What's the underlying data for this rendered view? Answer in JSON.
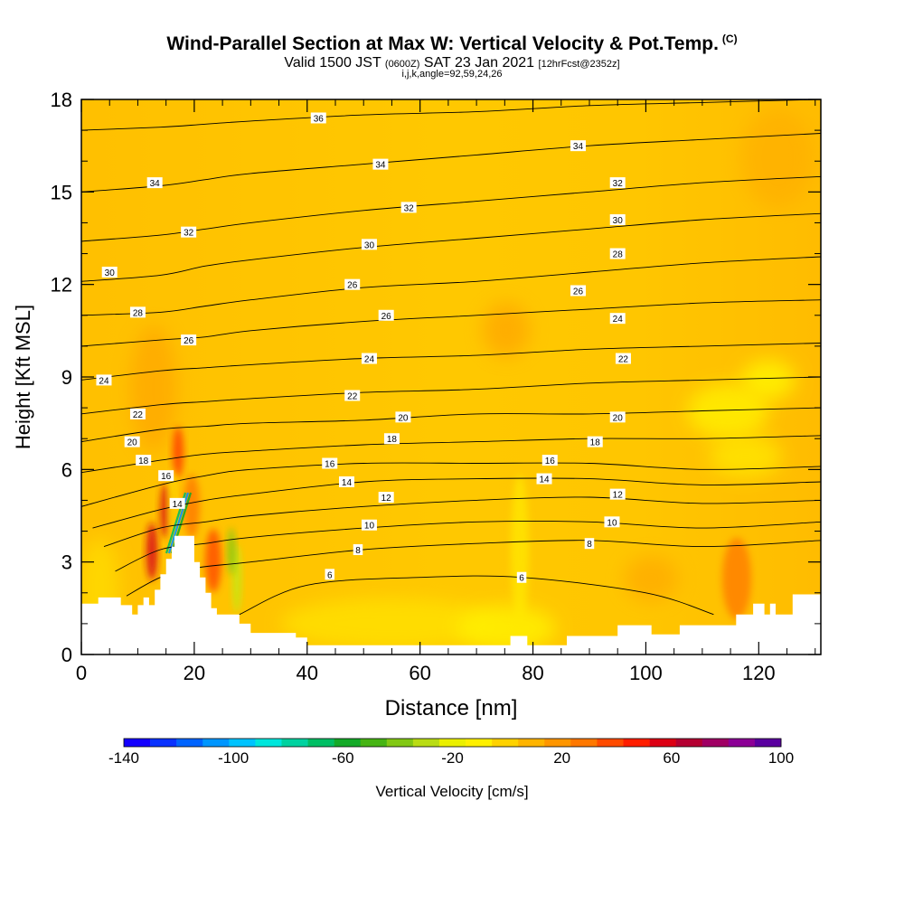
{
  "title": "Wind-Parallel Section at Max W: Vertical Velocity & Pot.Temp.",
  "title_tag": "(C)",
  "subtitle": {
    "valid": "Valid 1500 JST",
    "z_time": "(0600Z)",
    "date": "SAT 23 Jan 2021",
    "forecast": "[12hrFcst@2352z]"
  },
  "subtitle2": "i,j,k,angle=92,59,24,26",
  "chart_data": {
    "type": "heatmap",
    "xlabel": "Distance [nm]",
    "ylabel": "Height [Kft MSL]",
    "xlim": [
      0,
      131
    ],
    "ylim": [
      0,
      18
    ],
    "x_ticks": [
      0,
      20,
      40,
      60,
      80,
      100,
      120
    ],
    "y_ticks": [
      0,
      3,
      6,
      9,
      12,
      15,
      18
    ],
    "colorbar": {
      "label": "Vertical Velocity [cm/s]",
      "tick_labels": [
        -140,
        -100,
        -60,
        -20,
        20,
        60,
        100
      ],
      "levels": [
        -140,
        -130,
        -120,
        -110,
        -100,
        -90,
        -80,
        -70,
        -60,
        -50,
        -40,
        -30,
        -20,
        -10,
        0,
        10,
        20,
        30,
        40,
        50,
        60,
        70,
        80,
        90,
        100
      ],
      "colors": [
        "#1400ff",
        "#0a32ff",
        "#0064ff",
        "#0096ff",
        "#00c3ff",
        "#00e6dc",
        "#00d2a0",
        "#00be64",
        "#14aa28",
        "#46b414",
        "#82c814",
        "#b9dc14",
        "#ebf000",
        "#fff000",
        "#ffd200",
        "#ffb400",
        "#ff9600",
        "#ff7800",
        "#ff4b00",
        "#ff1e00",
        "#dc0014",
        "#b40032",
        "#a00064",
        "#8c0096",
        "#5a00a0"
      ]
    },
    "terrain_profile": [
      [
        0,
        1.65
      ],
      [
        3,
        1.65
      ],
      [
        3,
        1.85
      ],
      [
        7,
        1.85
      ],
      [
        7,
        1.6
      ],
      [
        9,
        1.6
      ],
      [
        9,
        1.3
      ],
      [
        10,
        1.3
      ],
      [
        10,
        1.6
      ],
      [
        11,
        1.6
      ],
      [
        11,
        1.85
      ],
      [
        12,
        1.85
      ],
      [
        12,
        1.6
      ],
      [
        13,
        1.6
      ],
      [
        13,
        2.1
      ],
      [
        14,
        2.1
      ],
      [
        14,
        2.6
      ],
      [
        15,
        2.6
      ],
      [
        15,
        3.1
      ],
      [
        16,
        3.1
      ],
      [
        16,
        3.5
      ],
      [
        16.5,
        3.5
      ],
      [
        16.5,
        3.85
      ],
      [
        20,
        3.85
      ],
      [
        20,
        3.0
      ],
      [
        21,
        3.0
      ],
      [
        21,
        2.5
      ],
      [
        22,
        2.5
      ],
      [
        22,
        2.0
      ],
      [
        23,
        2.0
      ],
      [
        23,
        1.5
      ],
      [
        24,
        1.5
      ],
      [
        24,
        1.3
      ],
      [
        28,
        1.3
      ],
      [
        28,
        1.0
      ],
      [
        30,
        1.0
      ],
      [
        30,
        0.7
      ],
      [
        38,
        0.7
      ],
      [
        38,
        0.55
      ],
      [
        40,
        0.55
      ],
      [
        40,
        0.3
      ],
      [
        56,
        0.3
      ],
      [
        56,
        0.3
      ],
      [
        76,
        0.3
      ],
      [
        76,
        0.6
      ],
      [
        79,
        0.6
      ],
      [
        79,
        0.3
      ],
      [
        81,
        0.3
      ],
      [
        81,
        0.3
      ],
      [
        86,
        0.3
      ],
      [
        86,
        0.6
      ],
      [
        91,
        0.6
      ],
      [
        91,
        0.6
      ],
      [
        95,
        0.6
      ],
      [
        95,
        0.95
      ],
      [
        98,
        0.95
      ],
      [
        98,
        0.95
      ],
      [
        101,
        0.95
      ],
      [
        101,
        0.65
      ],
      [
        106,
        0.65
      ],
      [
        106,
        0.95
      ],
      [
        116,
        0.95
      ],
      [
        116,
        1.3
      ],
      [
        119,
        1.3
      ],
      [
        119,
        1.65
      ],
      [
        121,
        1.65
      ],
      [
        121,
        1.3
      ],
      [
        122,
        1.3
      ],
      [
        122,
        1.65
      ],
      [
        123,
        1.65
      ],
      [
        123,
        1.3
      ],
      [
        126,
        1.3
      ],
      [
        126,
        1.95
      ],
      [
        131,
        1.95
      ]
    ],
    "theta_contours": [
      {
        "level": 6,
        "points": [
          [
            28,
            1.3
          ],
          [
            40,
            2.25
          ],
          [
            60,
            2.5
          ],
          [
            78,
            2.5
          ],
          [
            100,
            2.0
          ],
          [
            112,
            1.3
          ]
        ]
      },
      {
        "level": 8,
        "points": [
          [
            8,
            1.9
          ],
          [
            14,
            2.5
          ],
          [
            20,
            2.8
          ],
          [
            30,
            3.0
          ],
          [
            50,
            3.4
          ],
          [
            70,
            3.6
          ],
          [
            90,
            3.7
          ],
          [
            110,
            3.5
          ],
          [
            131,
            3.7
          ]
        ]
      },
      {
        "level": 10,
        "points": [
          [
            6,
            2.7
          ],
          [
            14,
            3.4
          ],
          [
            22,
            3.6
          ],
          [
            30,
            3.8
          ],
          [
            50,
            4.1
          ],
          [
            70,
            4.3
          ],
          [
            90,
            4.3
          ],
          [
            110,
            4.1
          ],
          [
            131,
            4.3
          ]
        ]
      },
      {
        "level": 12,
        "points": [
          [
            4,
            3.5
          ],
          [
            14,
            4.1
          ],
          [
            22,
            4.3
          ],
          [
            30,
            4.5
          ],
          [
            50,
            4.8
          ],
          [
            70,
            5.0
          ],
          [
            90,
            5.1
          ],
          [
            110,
            4.9
          ],
          [
            131,
            5.0
          ]
        ]
      },
      {
        "level": 14,
        "points": [
          [
            2,
            4.1
          ],
          [
            14,
            4.7
          ],
          [
            22,
            5.0
          ],
          [
            30,
            5.2
          ],
          [
            50,
            5.6
          ],
          [
            70,
            5.7
          ],
          [
            90,
            5.7
          ],
          [
            110,
            5.5
          ],
          [
            131,
            5.6
          ]
        ]
      },
      {
        "level": 16,
        "points": [
          [
            0,
            4.8
          ],
          [
            14,
            5.5
          ],
          [
            22,
            5.8
          ],
          [
            30,
            6.0
          ],
          [
            50,
            6.2
          ],
          [
            70,
            6.2
          ],
          [
            90,
            6.2
          ],
          [
            110,
            6.0
          ],
          [
            131,
            6.1
          ]
        ]
      },
      {
        "level": 18,
        "points": [
          [
            0,
            5.9
          ],
          [
            14,
            6.3
          ],
          [
            22,
            6.5
          ],
          [
            30,
            6.6
          ],
          [
            50,
            6.8
          ],
          [
            70,
            6.9
          ],
          [
            90,
            7.0
          ],
          [
            110,
            7.0
          ],
          [
            131,
            7.1
          ]
        ]
      },
      {
        "level": 20,
        "points": [
          [
            0,
            6.9
          ],
          [
            14,
            7.3
          ],
          [
            22,
            7.4
          ],
          [
            30,
            7.5
          ],
          [
            50,
            7.6
          ],
          [
            70,
            7.8
          ],
          [
            90,
            7.8
          ],
          [
            110,
            7.9
          ],
          [
            131,
            8.0
          ]
        ]
      },
      {
        "level": 22,
        "points": [
          [
            0,
            7.8
          ],
          [
            14,
            8.1
          ],
          [
            22,
            8.2
          ],
          [
            30,
            8.3
          ],
          [
            50,
            8.5
          ],
          [
            70,
            8.6
          ],
          [
            90,
            8.8
          ],
          [
            110,
            8.9
          ],
          [
            131,
            9.0
          ]
        ]
      },
      {
        "level": 24,
        "points": [
          [
            0,
            8.9
          ],
          [
            14,
            9.2
          ],
          [
            22,
            9.3
          ],
          [
            30,
            9.4
          ],
          [
            50,
            9.6
          ],
          [
            70,
            9.7
          ],
          [
            90,
            9.9
          ],
          [
            110,
            10.0
          ],
          [
            131,
            10.1
          ]
        ]
      },
      {
        "level": 26,
        "points": [
          [
            0,
            10.0
          ],
          [
            14,
            10.2
          ],
          [
            22,
            10.3
          ],
          [
            30,
            10.5
          ],
          [
            50,
            10.8
          ],
          [
            70,
            11.0
          ],
          [
            90,
            11.2
          ],
          [
            110,
            11.4
          ],
          [
            131,
            11.5
          ]
        ]
      },
      {
        "level": 28,
        "points": [
          [
            0,
            11.0
          ],
          [
            14,
            11.1
          ],
          [
            22,
            11.3
          ],
          [
            30,
            11.5
          ],
          [
            50,
            11.9
          ],
          [
            70,
            12.1
          ],
          [
            90,
            12.4
          ],
          [
            110,
            12.7
          ],
          [
            131,
            12.9
          ]
        ]
      },
      {
        "level": 30,
        "points": [
          [
            0,
            12.1
          ],
          [
            14,
            12.3
          ],
          [
            22,
            12.6
          ],
          [
            30,
            12.8
          ],
          [
            50,
            13.2
          ],
          [
            70,
            13.5
          ],
          [
            90,
            13.8
          ],
          [
            110,
            14.1
          ],
          [
            131,
            14.3
          ]
        ]
      },
      {
        "level": 32,
        "points": [
          [
            0,
            13.4
          ],
          [
            14,
            13.6
          ],
          [
            22,
            13.8
          ],
          [
            30,
            14.0
          ],
          [
            50,
            14.4
          ],
          [
            70,
            14.7
          ],
          [
            90,
            15.0
          ],
          [
            110,
            15.3
          ],
          [
            131,
            15.5
          ]
        ]
      },
      {
        "level": 34,
        "points": [
          [
            0,
            15.0
          ],
          [
            14,
            15.2
          ],
          [
            22,
            15.4
          ],
          [
            30,
            15.6
          ],
          [
            50,
            15.9
          ],
          [
            70,
            16.2
          ],
          [
            90,
            16.5
          ],
          [
            110,
            16.7
          ],
          [
            131,
            16.9
          ]
        ]
      },
      {
        "level": 36,
        "points": [
          [
            0,
            17.0
          ],
          [
            14,
            17.1
          ],
          [
            22,
            17.2
          ],
          [
            30,
            17.3
          ],
          [
            50,
            17.5
          ],
          [
            70,
            17.6
          ],
          [
            90,
            17.8
          ],
          [
            110,
            17.9
          ],
          [
            131,
            18.0
          ]
        ]
      }
    ],
    "contour_labels": [
      {
        "text": "36",
        "x": 42,
        "y": 17.4
      },
      {
        "text": "34",
        "x": 88,
        "y": 16.5
      },
      {
        "text": "34",
        "x": 53,
        "y": 15.9
      },
      {
        "text": "32",
        "x": 95,
        "y": 15.3
      },
      {
        "text": "34",
        "x": 13,
        "y": 15.3
      },
      {
        "text": "32",
        "x": 58,
        "y": 14.5
      },
      {
        "text": "30",
        "x": 95,
        "y": 14.1
      },
      {
        "text": "32",
        "x": 19,
        "y": 13.7
      },
      {
        "text": "30",
        "x": 51,
        "y": 13.3
      },
      {
        "text": "28",
        "x": 95,
        "y": 13.0
      },
      {
        "text": "30",
        "x": 5,
        "y": 12.4
      },
      {
        "text": "26",
        "x": 48,
        "y": 12.0
      },
      {
        "text": "26",
        "x": 88,
        "y": 11.8
      },
      {
        "text": "28",
        "x": 10,
        "y": 11.1
      },
      {
        "text": "26",
        "x": 54,
        "y": 11.0
      },
      {
        "text": "24",
        "x": 95,
        "y": 10.9
      },
      {
        "text": "26",
        "x": 19,
        "y": 10.2
      },
      {
        "text": "24",
        "x": 51,
        "y": 9.6
      },
      {
        "text": "22",
        "x": 96,
        "y": 9.6
      },
      {
        "text": "24",
        "x": 4,
        "y": 8.9
      },
      {
        "text": "22",
        "x": 48,
        "y": 8.4
      },
      {
        "text": "22",
        "x": 10,
        "y": 7.8
      },
      {
        "text": "20",
        "x": 57,
        "y": 7.7
      },
      {
        "text": "20",
        "x": 95,
        "y": 7.7
      },
      {
        "text": "20",
        "x": 9,
        "y": 6.9
      },
      {
        "text": "18",
        "x": 55,
        "y": 7.0
      },
      {
        "text": "18",
        "x": 91,
        "y": 6.9
      },
      {
        "text": "18",
        "x": 11,
        "y": 6.3
      },
      {
        "text": "16",
        "x": 44,
        "y": 6.2
      },
      {
        "text": "16",
        "x": 83,
        "y": 6.3
      },
      {
        "text": "16",
        "x": 15,
        "y": 5.8
      },
      {
        "text": "14",
        "x": 47,
        "y": 5.6
      },
      {
        "text": "14",
        "x": 82,
        "y": 5.7
      },
      {
        "text": "14",
        "x": 17,
        "y": 4.9
      },
      {
        "text": "12",
        "x": 54,
        "y": 5.1
      },
      {
        "text": "12",
        "x": 95,
        "y": 5.2
      },
      {
        "text": "10",
        "x": 51,
        "y": 4.2
      },
      {
        "text": "10",
        "x": 94,
        "y": 4.3
      },
      {
        "text": "8",
        "x": 49,
        "y": 3.4
      },
      {
        "text": "8",
        "x": 90,
        "y": 3.6
      },
      {
        "text": "6",
        "x": 44,
        "y": 2.6
      },
      {
        "text": "6",
        "x": 78,
        "y": 2.5
      }
    ]
  }
}
